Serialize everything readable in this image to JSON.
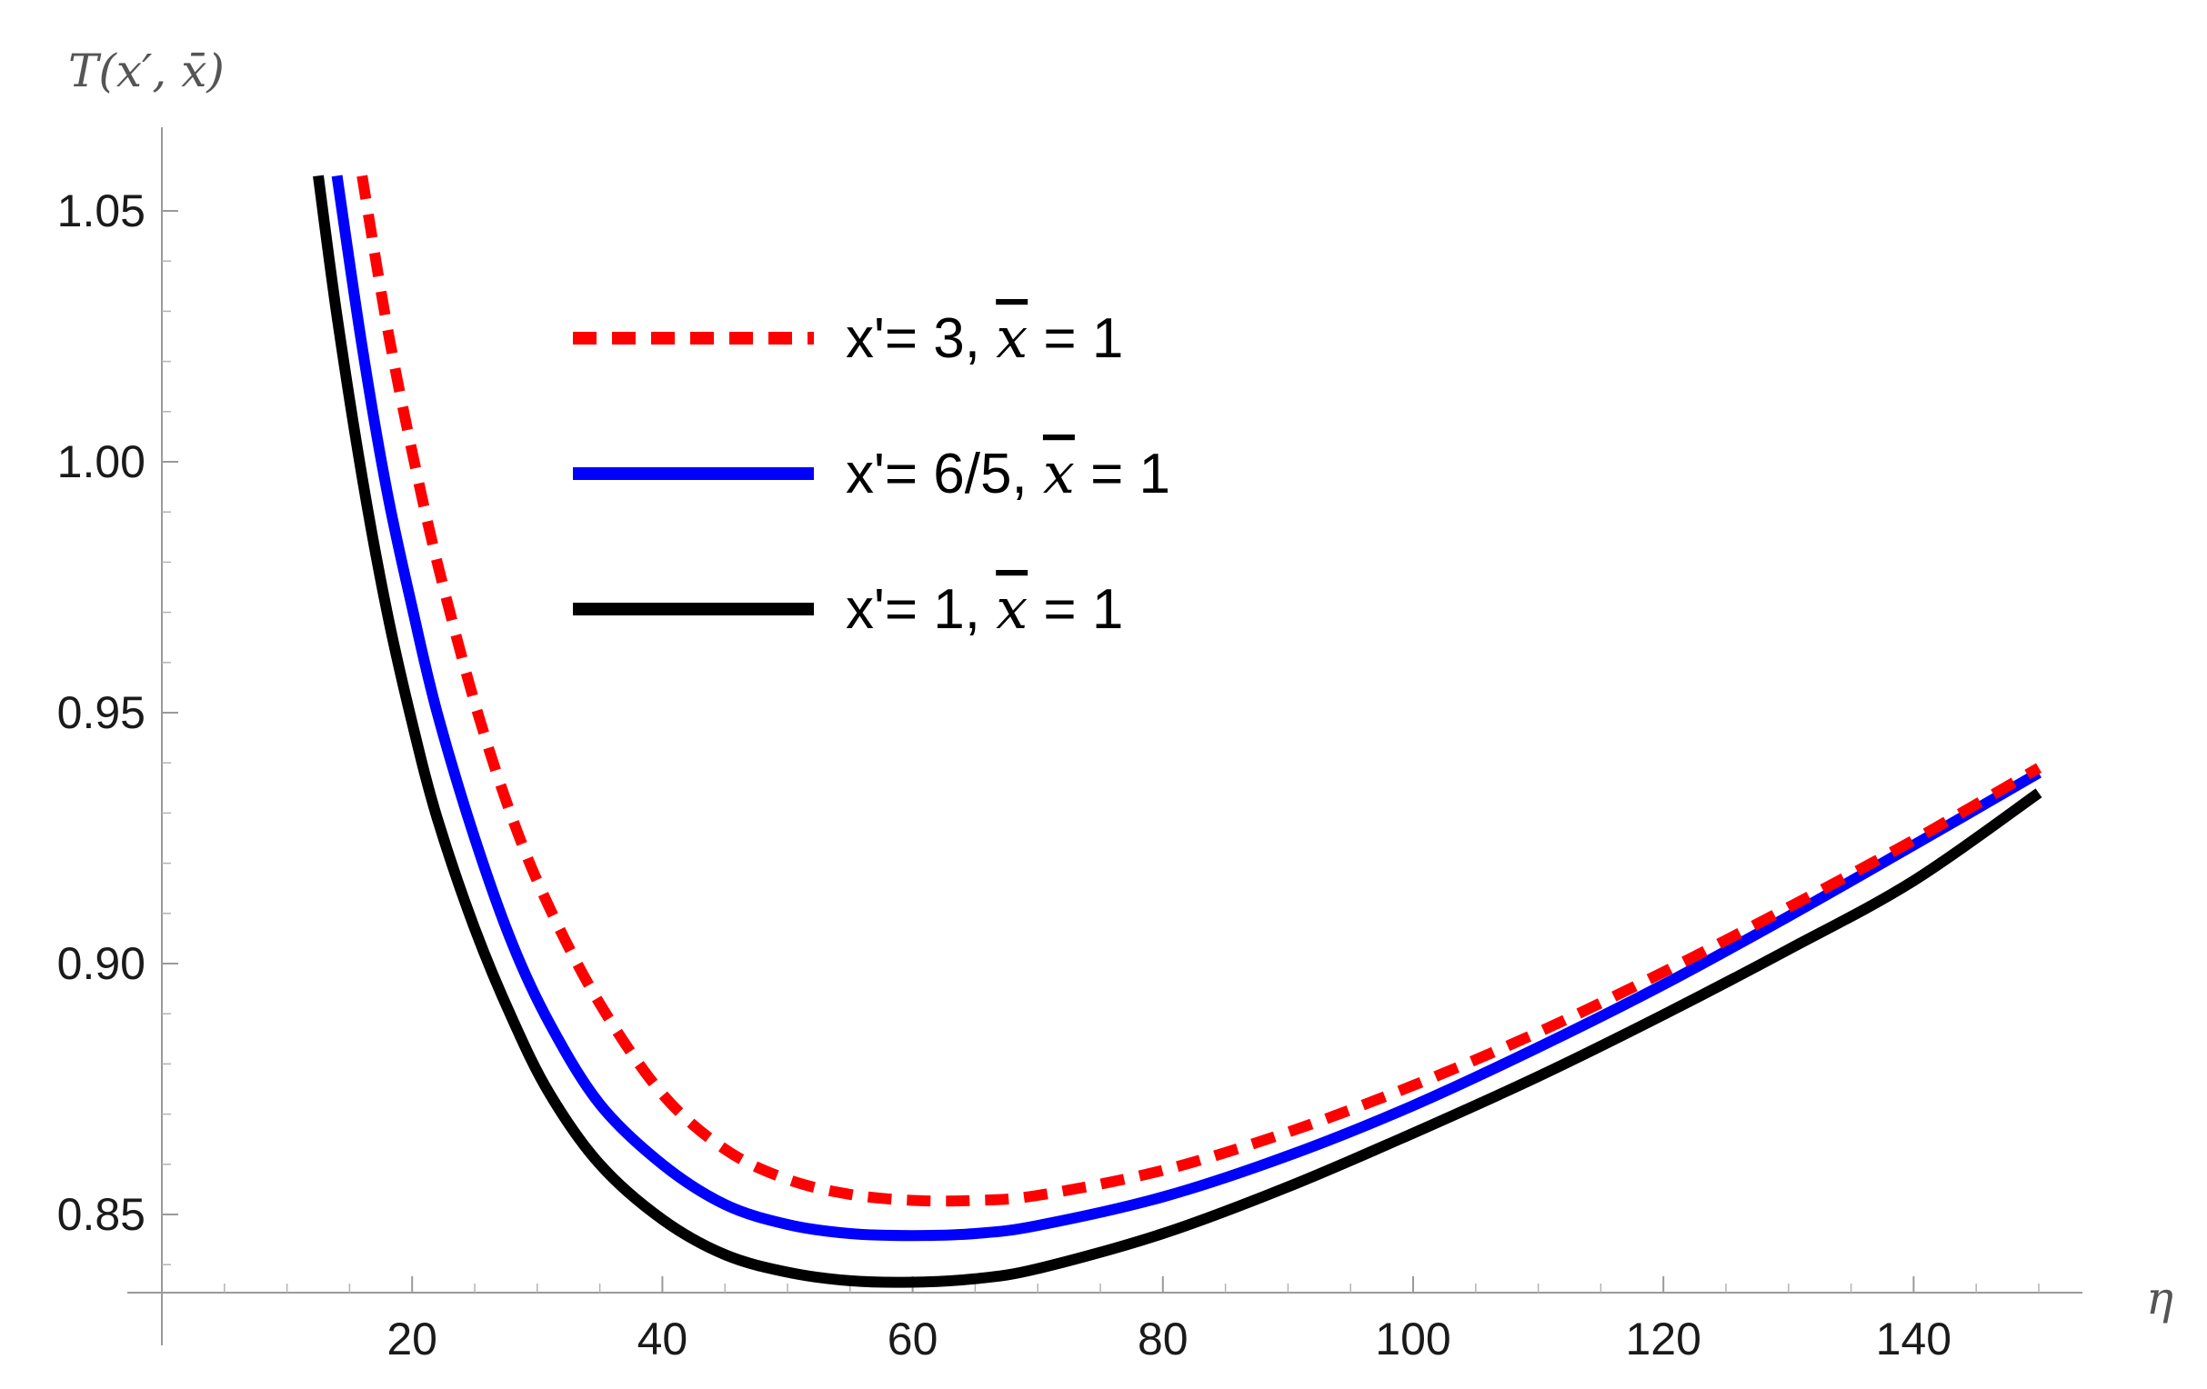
{
  "chart_data": {
    "type": "line",
    "title": "",
    "xlabel": "η",
    "ylabel": "T(x′, x̄)",
    "xlim": [
      0,
      150
    ],
    "ylim": [
      0.835,
      1.06
    ],
    "x_ticks": [
      20,
      40,
      60,
      80,
      100,
      120,
      140
    ],
    "x_tick_labels": [
      "20",
      "40",
      "60",
      "80",
      "100",
      "120",
      "140"
    ],
    "y_ticks": [
      0.85,
      0.9,
      0.95,
      1.0,
      1.05
    ],
    "y_tick_labels": [
      "0.85",
      "0.90",
      "0.95",
      "1.00",
      "1.05"
    ],
    "grid": false,
    "legend_position": "top-center",
    "series": [
      {
        "name": "x'= 3, x̄ = 1",
        "legend_parts": [
          "x'= 3, ",
          "x",
          " = 1"
        ],
        "color": "#ff0000",
        "style": "dashed",
        "x": [
          16,
          18,
          20,
          22,
          25,
          28,
          31,
          35,
          40,
          45,
          50,
          55,
          60,
          65,
          70,
          80,
          90,
          100,
          110,
          120,
          130,
          140,
          150
        ],
        "y": [
          1.057,
          1.027,
          1.002,
          0.98,
          0.952,
          0.929,
          0.911,
          0.892,
          0.874,
          0.863,
          0.857,
          0.854,
          0.8528,
          0.8528,
          0.8538,
          0.8588,
          0.8664,
          0.8757,
          0.8863,
          0.8983,
          0.9112,
          0.9246,
          0.939
        ]
      },
      {
        "name": "x'= 6/5, x̄ = 1",
        "legend_parts": [
          "x'= 6/5, ",
          "x",
          " = 1"
        ],
        "color": "#0000ff",
        "style": "solid",
        "x": [
          14,
          16,
          18,
          20,
          22,
          25,
          28,
          31,
          35,
          40,
          45,
          50,
          55,
          60,
          65,
          70,
          80,
          90,
          100,
          110,
          120,
          130,
          140,
          150
        ],
        "y": [
          1.057,
          1.023,
          0.994,
          0.971,
          0.95,
          0.925,
          0.904,
          0.888,
          0.872,
          0.86,
          0.852,
          0.848,
          0.8462,
          0.8458,
          0.8462,
          0.8478,
          0.8535,
          0.8617,
          0.8717,
          0.8833,
          0.8958,
          0.9094,
          0.9236,
          0.938
        ]
      },
      {
        "name": "x'= 1, x̄ = 1",
        "legend_parts": [
          "x'= 1, ",
          "x",
          " = 1"
        ],
        "color": "#000000",
        "style": "solid",
        "x": [
          12.5,
          14,
          16,
          18,
          20,
          22,
          25,
          28,
          31,
          35,
          40,
          45,
          50,
          55,
          60,
          65,
          70,
          80,
          90,
          100,
          110,
          120,
          130,
          140,
          150
        ],
        "y": [
          1.057,
          1.029,
          0.997,
          0.97,
          0.948,
          0.929,
          0.907,
          0.889,
          0.874,
          0.86,
          0.849,
          0.842,
          0.8385,
          0.8368,
          0.8365,
          0.8372,
          0.8392,
          0.8462,
          0.8555,
          0.8662,
          0.8775,
          0.8898,
          0.9028,
          0.9165,
          0.934
        ]
      }
    ]
  }
}
